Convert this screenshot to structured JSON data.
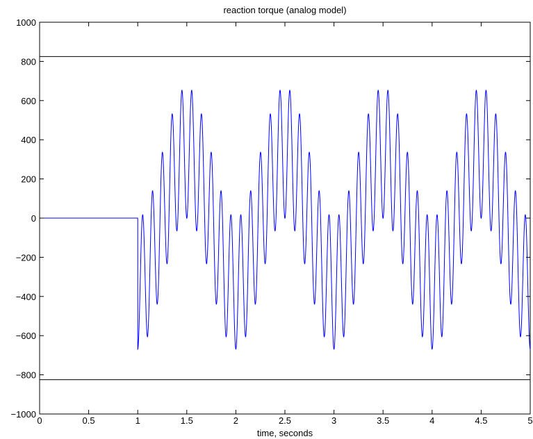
{
  "chart_data": {
    "type": "line",
    "title": "reaction torque (analog model)",
    "xlabel": "time, seconds",
    "ylabel": "",
    "xlim": [
      0,
      5
    ],
    "ylim": [
      -1000,
      1000
    ],
    "grid": false,
    "legend": "none",
    "x_ticks": [
      0,
      0.5,
      1,
      1.5,
      2,
      2.5,
      3,
      3.5,
      4,
      4.5,
      5
    ],
    "x_tick_labels": [
      "0",
      "0.5",
      "1",
      "1.5",
      "2",
      "2.5",
      "3",
      "3.5",
      "4",
      "4.5",
      "5"
    ],
    "y_ticks": [
      -1000,
      -800,
      -600,
      -400,
      -200,
      0,
      200,
      400,
      600,
      800,
      1000
    ],
    "y_tick_labels": [
      "−1000",
      "−800",
      "−600",
      "−400",
      "−200",
      "0",
      "200",
      "400",
      "600",
      "800",
      "1000"
    ],
    "limit_lines": [
      {
        "y": 825,
        "color": "#000000"
      },
      {
        "y": -825,
        "color": "#000000"
      }
    ],
    "series": [
      {
        "color": "#0000ff",
        "segments": [
          {
            "x_start": 0,
            "x_end": 1,
            "value": 0
          },
          {
            "x_start": 1,
            "x_end": 5,
            "envelope_period": 1,
            "carrier_cycles_per_period": 10,
            "peaks_max": 660,
            "peaks_min": -675,
            "notes": "oscillation starting at t=1 with envelope repeating every 1 s"
          }
        ],
        "samples": [
          [
            1.0,
            -670
          ],
          [
            1.05,
            15
          ],
          [
            1.1,
            -610
          ],
          [
            1.15,
            140
          ],
          [
            1.2,
            -440
          ],
          [
            1.25,
            340
          ],
          [
            1.3,
            -230
          ],
          [
            1.35,
            540
          ],
          [
            1.4,
            -30
          ],
          [
            1.45,
            660
          ],
          [
            1.5,
            50
          ],
          [
            1.55,
            660
          ],
          [
            1.6,
            10
          ],
          [
            1.65,
            540
          ],
          [
            1.7,
            -130
          ],
          [
            1.75,
            340
          ],
          [
            1.8,
            -370
          ],
          [
            1.85,
            140
          ],
          [
            1.9,
            -610
          ],
          [
            1.95,
            15
          ],
          [
            2.0,
            -675
          ]
        ]
      }
    ]
  }
}
